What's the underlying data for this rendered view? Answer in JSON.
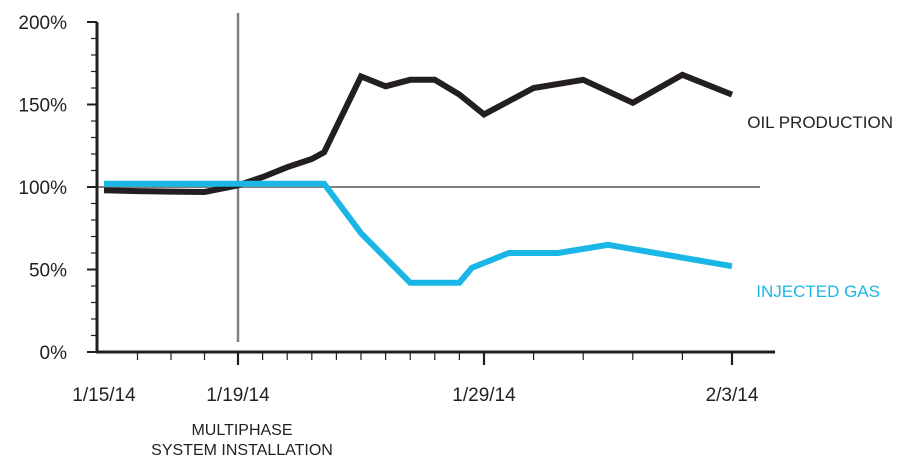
{
  "chart_data": {
    "type": "line",
    "x_ticks": [
      "1/15/14",
      "1/19/14",
      "1/29/14",
      "2/3/14"
    ],
    "y_ticks": [
      "0%",
      "50%",
      "100%",
      "150%",
      "200%"
    ],
    "ylim": [
      0,
      200
    ],
    "xlim": [
      "2014-01-15",
      "2014-02-04"
    ],
    "reference_line": 100,
    "event": {
      "date": "2014-01-19",
      "label_lines": [
        "MULTIPHASE",
        "SYSTEM INSTALLATION"
      ]
    },
    "series": [
      {
        "name": "OIL PRODUCTION",
        "color": "#231f20",
        "points": [
          [
            "2014-01-15",
            98
          ],
          [
            "2014-01-16",
            97.5
          ],
          [
            "2014-01-17",
            97.2
          ],
          [
            "2014-01-18",
            97
          ],
          [
            "2014-01-19",
            101
          ],
          [
            "2014-01-20",
            106
          ],
          [
            "2014-01-21",
            112
          ],
          [
            "2014-01-22",
            117
          ],
          [
            "2014-01-22.5",
            121
          ],
          [
            "2014-01-24",
            167
          ],
          [
            "2014-01-25",
            161
          ],
          [
            "2014-01-26",
            165
          ],
          [
            "2014-01-27",
            165
          ],
          [
            "2014-01-28",
            156
          ],
          [
            "2014-01-29",
            144
          ],
          [
            "2014-01-30",
            160
          ],
          [
            "2014-01-31",
            165
          ],
          [
            "2014-02-01",
            151
          ],
          [
            "2014-02-02",
            168
          ],
          [
            "2014-02-03",
            156
          ]
        ]
      },
      {
        "name": "INJECTED GAS",
        "color": "#1ab7e6",
        "points": [
          [
            "2014-01-15",
            102
          ],
          [
            "2014-01-19",
            102
          ],
          [
            "2014-01-22.5",
            102
          ],
          [
            "2014-01-24",
            72
          ],
          [
            "2014-01-26",
            42
          ],
          [
            "2014-01-27",
            42
          ],
          [
            "2014-01-28",
            42
          ],
          [
            "2014-01-28.5",
            51
          ],
          [
            "2014-01-29.5",
            60
          ],
          [
            "2014-01-30.5",
            60
          ],
          [
            "2014-01-31.5",
            65
          ],
          [
            "2014-02-03",
            52
          ]
        ]
      }
    ]
  }
}
